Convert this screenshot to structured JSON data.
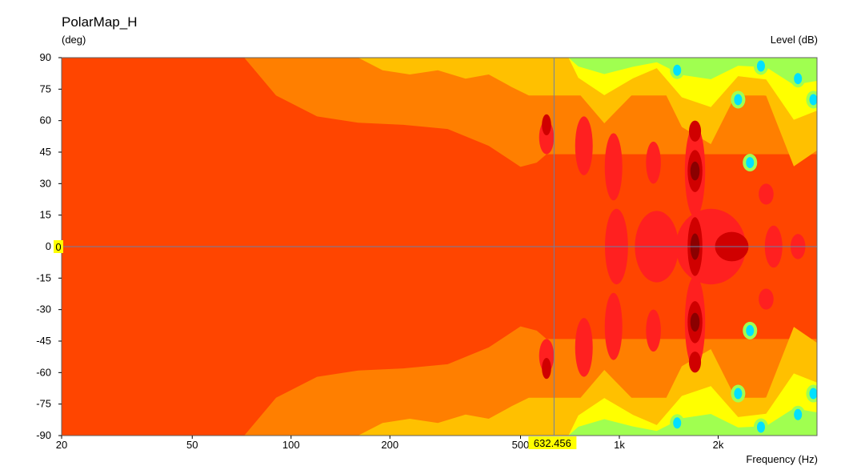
{
  "chart_data": {
    "type": "heatmap",
    "title": "PolarMap_H",
    "ylabel": "(deg)",
    "xlabel": "Frequency  (Hz)",
    "zlabel": "Level  (dB)",
    "xscale": "log",
    "xlim": [
      20,
      4000
    ],
    "ylim": [
      -90,
      90
    ],
    "x_ticks": [
      20,
      50,
      100,
      200,
      500,
      1000,
      2000
    ],
    "x_tick_labels": [
      "20",
      "50",
      "100",
      "200",
      "500",
      "1k",
      "2k"
    ],
    "y_ticks": [
      90,
      75,
      60,
      45,
      30,
      15,
      0,
      -15,
      -30,
      -45,
      -60,
      -75,
      -90
    ],
    "cursor": {
      "x": 632.456,
      "y": 0,
      "x_label": "632.456",
      "y_label": "0"
    },
    "colors": {
      "base": "#ff4500",
      "level_1": "#ff7f00",
      "level_2": "#ffc000",
      "level_3": "#ffff00",
      "level_4": "#a0ff50",
      "level_5": "#00e0ff",
      "hot_1": "#ff2020",
      "hot_2": "#d00000",
      "hot_3": "#8b0000"
    },
    "contours": {
      "orange_x": [
        72,
        90,
        120,
        160,
        220,
        300,
        400,
        500,
        560,
        600
      ],
      "orange_angle": [
        90,
        72,
        62,
        59,
        58,
        56,
        48,
        38,
        40,
        44
      ],
      "yellow_x": [
        160,
        190,
        230,
        280,
        340,
        400,
        470,
        530
      ],
      "yellow_angle": [
        90,
        84,
        82,
        84,
        80,
        82,
        76,
        72
      ],
      "cyan_spots": [
        {
          "f": 1500,
          "deg": 84
        },
        {
          "f": 2300,
          "deg": 70
        },
        {
          "f": 2700,
          "deg": 86
        },
        {
          "f": 3500,
          "deg": 80
        },
        {
          "f": 2500,
          "deg": 40
        },
        {
          "f": 1500,
          "deg": -84
        },
        {
          "f": 2300,
          "deg": -70
        },
        {
          "f": 2700,
          "deg": -86
        },
        {
          "f": 3500,
          "deg": -80
        },
        {
          "f": 2500,
          "deg": -40
        },
        {
          "f": 3900,
          "deg": 70
        },
        {
          "f": 3900,
          "deg": -70
        }
      ],
      "red_blobs": [
        {
          "f": 600,
          "deg": 52,
          "rf": 1.03,
          "rdeg": 8
        },
        {
          "f": 780,
          "deg": 48,
          "rf": 1.04,
          "rdeg": 14
        },
        {
          "f": 960,
          "deg": 38,
          "rf": 1.04,
          "rdeg": 16
        },
        {
          "f": 1270,
          "deg": 40,
          "rf": 1.03,
          "rdeg": 10
        },
        {
          "f": 1700,
          "deg": 36,
          "rf": 1.05,
          "rdeg": 22
        },
        {
          "f": 600,
          "deg": -52,
          "rf": 1.03,
          "rdeg": 8
        },
        {
          "f": 780,
          "deg": -48,
          "rf": 1.04,
          "rdeg": 14
        },
        {
          "f": 960,
          "deg": -38,
          "rf": 1.04,
          "rdeg": 16
        },
        {
          "f": 1270,
          "deg": -40,
          "rf": 1.03,
          "rdeg": 10
        },
        {
          "f": 1700,
          "deg": -36,
          "rf": 1.05,
          "rdeg": 22
        },
        {
          "f": 980,
          "deg": 0,
          "rf": 1.06,
          "rdeg": 18
        },
        {
          "f": 1300,
          "deg": 0,
          "rf": 1.14,
          "rdeg": 17
        },
        {
          "f": 1900,
          "deg": 0,
          "rf": 1.25,
          "rdeg": 18
        },
        {
          "f": 2950,
          "deg": 0,
          "rf": 1.04,
          "rdeg": 10
        },
        {
          "f": 3500,
          "deg": 0,
          "rf": 1.03,
          "rdeg": 6
        },
        {
          "f": 2800,
          "deg": 25,
          "rf": 1.03,
          "rdeg": 5
        },
        {
          "f": 2800,
          "deg": -25,
          "rf": 1.03,
          "rdeg": 5
        }
      ],
      "dark_blobs": [
        {
          "f": 1700,
          "deg": 0,
          "rf": 1.03,
          "rdeg": 14
        },
        {
          "f": 1700,
          "deg": 36,
          "rf": 1.03,
          "rdeg": 10
        },
        {
          "f": 1700,
          "deg": -36,
          "rf": 1.03,
          "rdeg": 10
        },
        {
          "f": 1700,
          "deg": 55,
          "rf": 1.02,
          "rdeg": 5
        },
        {
          "f": 1700,
          "deg": -55,
          "rf": 1.02,
          "rdeg": 5
        },
        {
          "f": 2200,
          "deg": 0,
          "rf": 1.1,
          "rdeg": 7
        },
        {
          "f": 600,
          "deg": 58,
          "rf": 1.01,
          "rdeg": 5
        },
        {
          "f": 600,
          "deg": -58,
          "rf": 1.01,
          "rdeg": 5
        }
      ]
    }
  }
}
